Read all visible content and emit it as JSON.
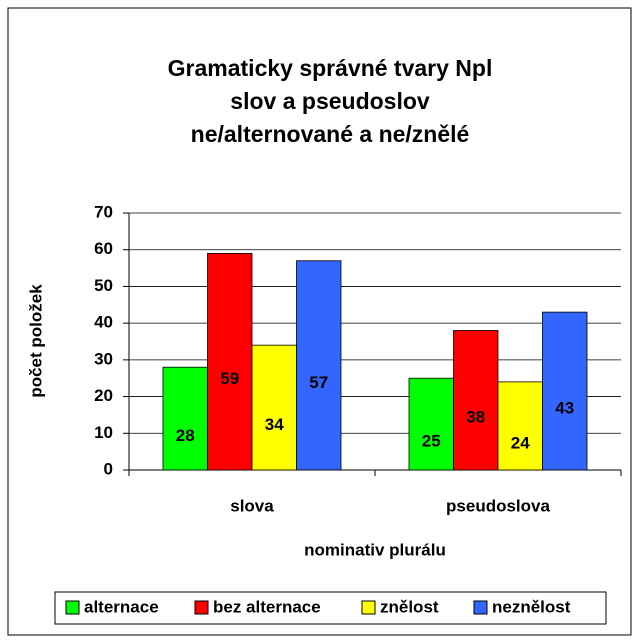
{
  "chart_data": {
    "type": "bar",
    "title": [
      "Gramaticky správné tvary Npl",
      "slov a pseudoslov",
      "ne/alternované a ne/znělé"
    ],
    "x_label": "nominativ plurálu",
    "y_label": "počet položek",
    "categories": [
      "slova",
      "pseudoslova"
    ],
    "series": [
      {
        "name": "alternace",
        "color": "#00ff00",
        "values": [
          28,
          25
        ]
      },
      {
        "name": "bez alternace",
        "color": "#ff0000",
        "values": [
          59,
          38
        ]
      },
      {
        "name": "znělost",
        "color": "#ffff00",
        "values": [
          34,
          24
        ]
      },
      {
        "name": "neznělost",
        "color": "#3366ff",
        "values": [
          57,
          43
        ]
      }
    ],
    "ylim": [
      0,
      70
    ],
    "yticks": [
      0,
      10,
      20,
      30,
      40,
      50,
      60,
      70
    ],
    "grid": true,
    "legend": "bottom"
  }
}
